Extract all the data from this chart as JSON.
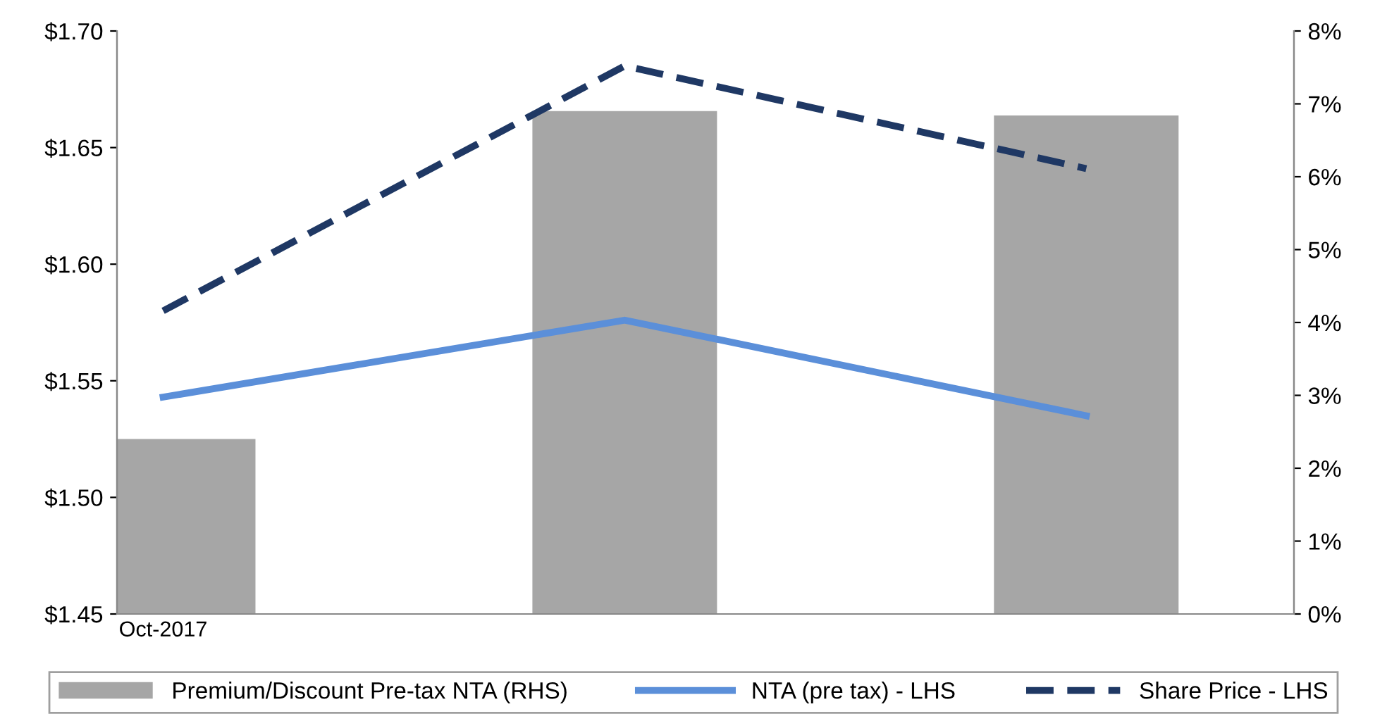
{
  "chart_data": {
    "type": "line",
    "categories": [
      "Oct-2017",
      null,
      null
    ],
    "series": [
      {
        "name": "Premium/Discount Pre-tax NTA (RHS)",
        "type": "bar",
        "axis": "y2",
        "color": "#a6a6a6",
        "values": [
          2.4,
          6.9,
          6.84
        ]
      },
      {
        "name": "NTA (pre tax) - LHS",
        "axis": "y",
        "color": "#5b8fd9",
        "line_style": "solid",
        "values": [
          1.543,
          1.576,
          1.535
        ]
      },
      {
        "name": "Share Price - LHS",
        "axis": "y",
        "color": "#1f3864",
        "line_style": "dashed",
        "values": [
          1.58,
          1.685,
          1.641
        ]
      }
    ],
    "ylim": [
      1.45,
      1.7
    ],
    "yticks": [
      {
        "value": 1.45,
        "label": "$1.45"
      },
      {
        "value": 1.5,
        "label": "$1.50"
      },
      {
        "value": 1.55,
        "label": "$1.55"
      },
      {
        "value": 1.6,
        "label": "$1.60"
      },
      {
        "value": 1.65,
        "label": "$1.65"
      },
      {
        "value": 1.7,
        "label": "$1.70"
      }
    ],
    "y2lim": [
      0,
      8
    ],
    "y2ticks": [
      {
        "value": 0,
        "label": "0%"
      },
      {
        "value": 1,
        "label": "1%"
      },
      {
        "value": 2,
        "label": "2%"
      },
      {
        "value": 3,
        "label": "3%"
      },
      {
        "value": 4,
        "label": "4%"
      },
      {
        "value": 5,
        "label": "5%"
      },
      {
        "value": 6,
        "label": "6%"
      },
      {
        "value": 7,
        "label": "7%"
      },
      {
        "value": 8,
        "label": "8%"
      }
    ],
    "grid": false,
    "legend": "bottom",
    "marker": "none"
  }
}
